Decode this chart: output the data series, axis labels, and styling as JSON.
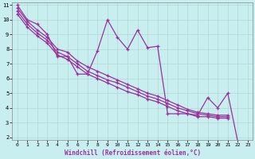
{
  "xlabel": "Windchill (Refroidissement éolien,°C)",
  "background_color": "#c8eef0",
  "line_color": "#993399",
  "grid_color": "#b0d8d0",
  "xlim": [
    -0.5,
    23.5
  ],
  "ylim": [
    1.8,
    11.2
  ],
  "xticks": [
    0,
    1,
    2,
    3,
    4,
    5,
    6,
    7,
    8,
    9,
    10,
    11,
    12,
    13,
    14,
    15,
    16,
    17,
    18,
    19,
    20,
    21,
    22,
    23
  ],
  "yticks": [
    2,
    3,
    4,
    5,
    6,
    7,
    8,
    9,
    10,
    11
  ],
  "series1_x": [
    0,
    1,
    2,
    3,
    4,
    5,
    6,
    7,
    8,
    9,
    10,
    11,
    12,
    13,
    14,
    15,
    16,
    17,
    18,
    19,
    20,
    21,
    22
  ],
  "series1_y": [
    11.0,
    10.0,
    9.7,
    9.0,
    7.5,
    7.5,
    6.3,
    6.3,
    7.9,
    10.0,
    8.8,
    8.0,
    9.3,
    8.1,
    8.2,
    3.6,
    3.6,
    3.6,
    3.5,
    4.7,
    4.0,
    5.0,
    1.7
  ],
  "series2_x": [
    0,
    1,
    2,
    3,
    4,
    5,
    6,
    7,
    8,
    9,
    10,
    11,
    12,
    13,
    14,
    15,
    16,
    17,
    18,
    19,
    20,
    21
  ],
  "series2_y": [
    10.8,
    9.9,
    9.3,
    8.8,
    8.0,
    7.8,
    7.2,
    6.8,
    6.5,
    6.2,
    5.9,
    5.6,
    5.3,
    5.0,
    4.8,
    4.5,
    4.2,
    3.9,
    3.7,
    3.6,
    3.5,
    3.5
  ],
  "series3_x": [
    0,
    1,
    2,
    3,
    4,
    5,
    6,
    7,
    8,
    9,
    10,
    11,
    12,
    13,
    14,
    15,
    16,
    17,
    18,
    19,
    20,
    21
  ],
  "series3_y": [
    10.6,
    9.7,
    9.1,
    8.6,
    7.8,
    7.5,
    7.0,
    6.5,
    6.2,
    5.9,
    5.7,
    5.4,
    5.1,
    4.8,
    4.6,
    4.3,
    4.0,
    3.8,
    3.6,
    3.5,
    3.4,
    3.4
  ],
  "series4_x": [
    0,
    1,
    2,
    3,
    4,
    5,
    6,
    7,
    8,
    9,
    10,
    11,
    12,
    13,
    14,
    15,
    16,
    17,
    18,
    19,
    20,
    21
  ],
  "series4_y": [
    10.4,
    9.5,
    8.9,
    8.4,
    7.6,
    7.3,
    6.8,
    6.3,
    6.0,
    5.7,
    5.4,
    5.1,
    4.9,
    4.6,
    4.4,
    4.1,
    3.8,
    3.6,
    3.4,
    3.4,
    3.3,
    3.3
  ]
}
